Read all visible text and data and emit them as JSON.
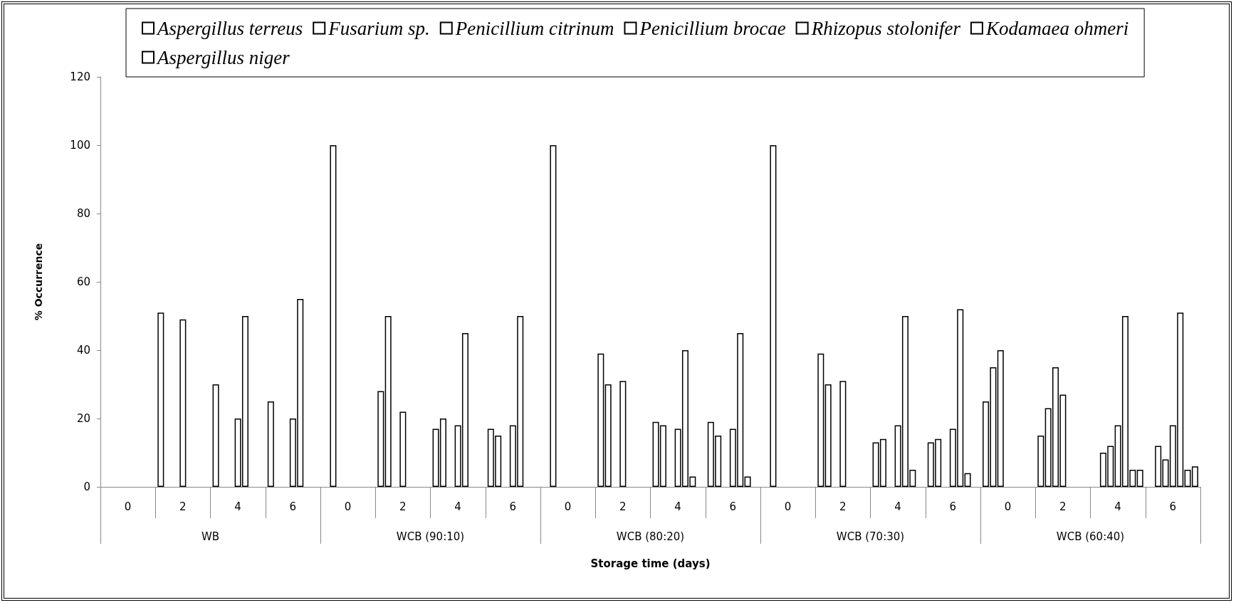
{
  "chart_data": {
    "type": "bar",
    "xlabel": "Storage time (days)",
    "ylabel": "% Occurrence",
    "categories": [
      "0",
      "2",
      "4",
      "6",
      "0",
      "2",
      "4",
      "6",
      "0",
      "2",
      "4",
      "6",
      "0",
      "2",
      "4",
      "6",
      "0",
      "2",
      "4",
      "6"
    ],
    "annotations": [
      "WB",
      "WCB (90:10)",
      "WCB (80:20)",
      "WCB (70:30)",
      "WCB (60:40)"
    ],
    "series": [
      {
        "name": "Aspergillus terreus",
        "color": "#ffffff",
        "values": [
          0,
          51,
          30,
          25,
          0,
          28,
          17,
          17,
          0,
          39,
          19,
          19,
          0,
          39,
          13,
          13,
          25,
          15,
          0,
          0
        ]
      },
      {
        "name": "Fusarium sp.",
        "color": "#ffffff",
        "values": [
          0,
          0,
          0,
          0,
          100,
          50,
          20,
          15,
          100,
          30,
          18,
          15,
          100,
          30,
          14,
          14,
          35,
          23,
          10,
          12
        ]
      },
      {
        "name": "Penicillium citrinum",
        "color": "#ffffff",
        "values": [
          0,
          0,
          0,
          0,
          0,
          0,
          0,
          0,
          0,
          0,
          0,
          0,
          0,
          0,
          0,
          0,
          40,
          35,
          12,
          8
        ]
      },
      {
        "name": "Penicillium brocae",
        "color": "#ffffff",
        "values": [
          0,
          49,
          20,
          20,
          0,
          22,
          18,
          18,
          0,
          31,
          17,
          17,
          0,
          31,
          18,
          17,
          0,
          27,
          18,
          18
        ]
      },
      {
        "name": "Rhizopus stolonifer",
        "color": "#ffffff",
        "values": [
          0,
          0,
          50,
          55,
          0,
          0,
          45,
          50,
          0,
          0,
          40,
          45,
          0,
          0,
          50,
          52,
          0,
          0,
          50,
          51
        ]
      },
      {
        "name": "Kodamaea ohmeri",
        "color": "#ffffff",
        "values": [
          0,
          0,
          0,
          0,
          0,
          0,
          0,
          0,
          0,
          0,
          3,
          3,
          0,
          0,
          5,
          4,
          0,
          0,
          5,
          5
        ]
      },
      {
        "name": "Aspergillus niger",
        "color": "#ffffff",
        "values": [
          0,
          0,
          0,
          0,
          0,
          0,
          0,
          0,
          0,
          0,
          0,
          0,
          0,
          0,
          0,
          0,
          0,
          0,
          5,
          6
        ]
      }
    ],
    "ylim": [
      0,
      120
    ],
    "yticks": [
      0,
      20,
      40,
      60,
      80,
      100,
      120
    ],
    "grid": false,
    "legend": "top"
  }
}
